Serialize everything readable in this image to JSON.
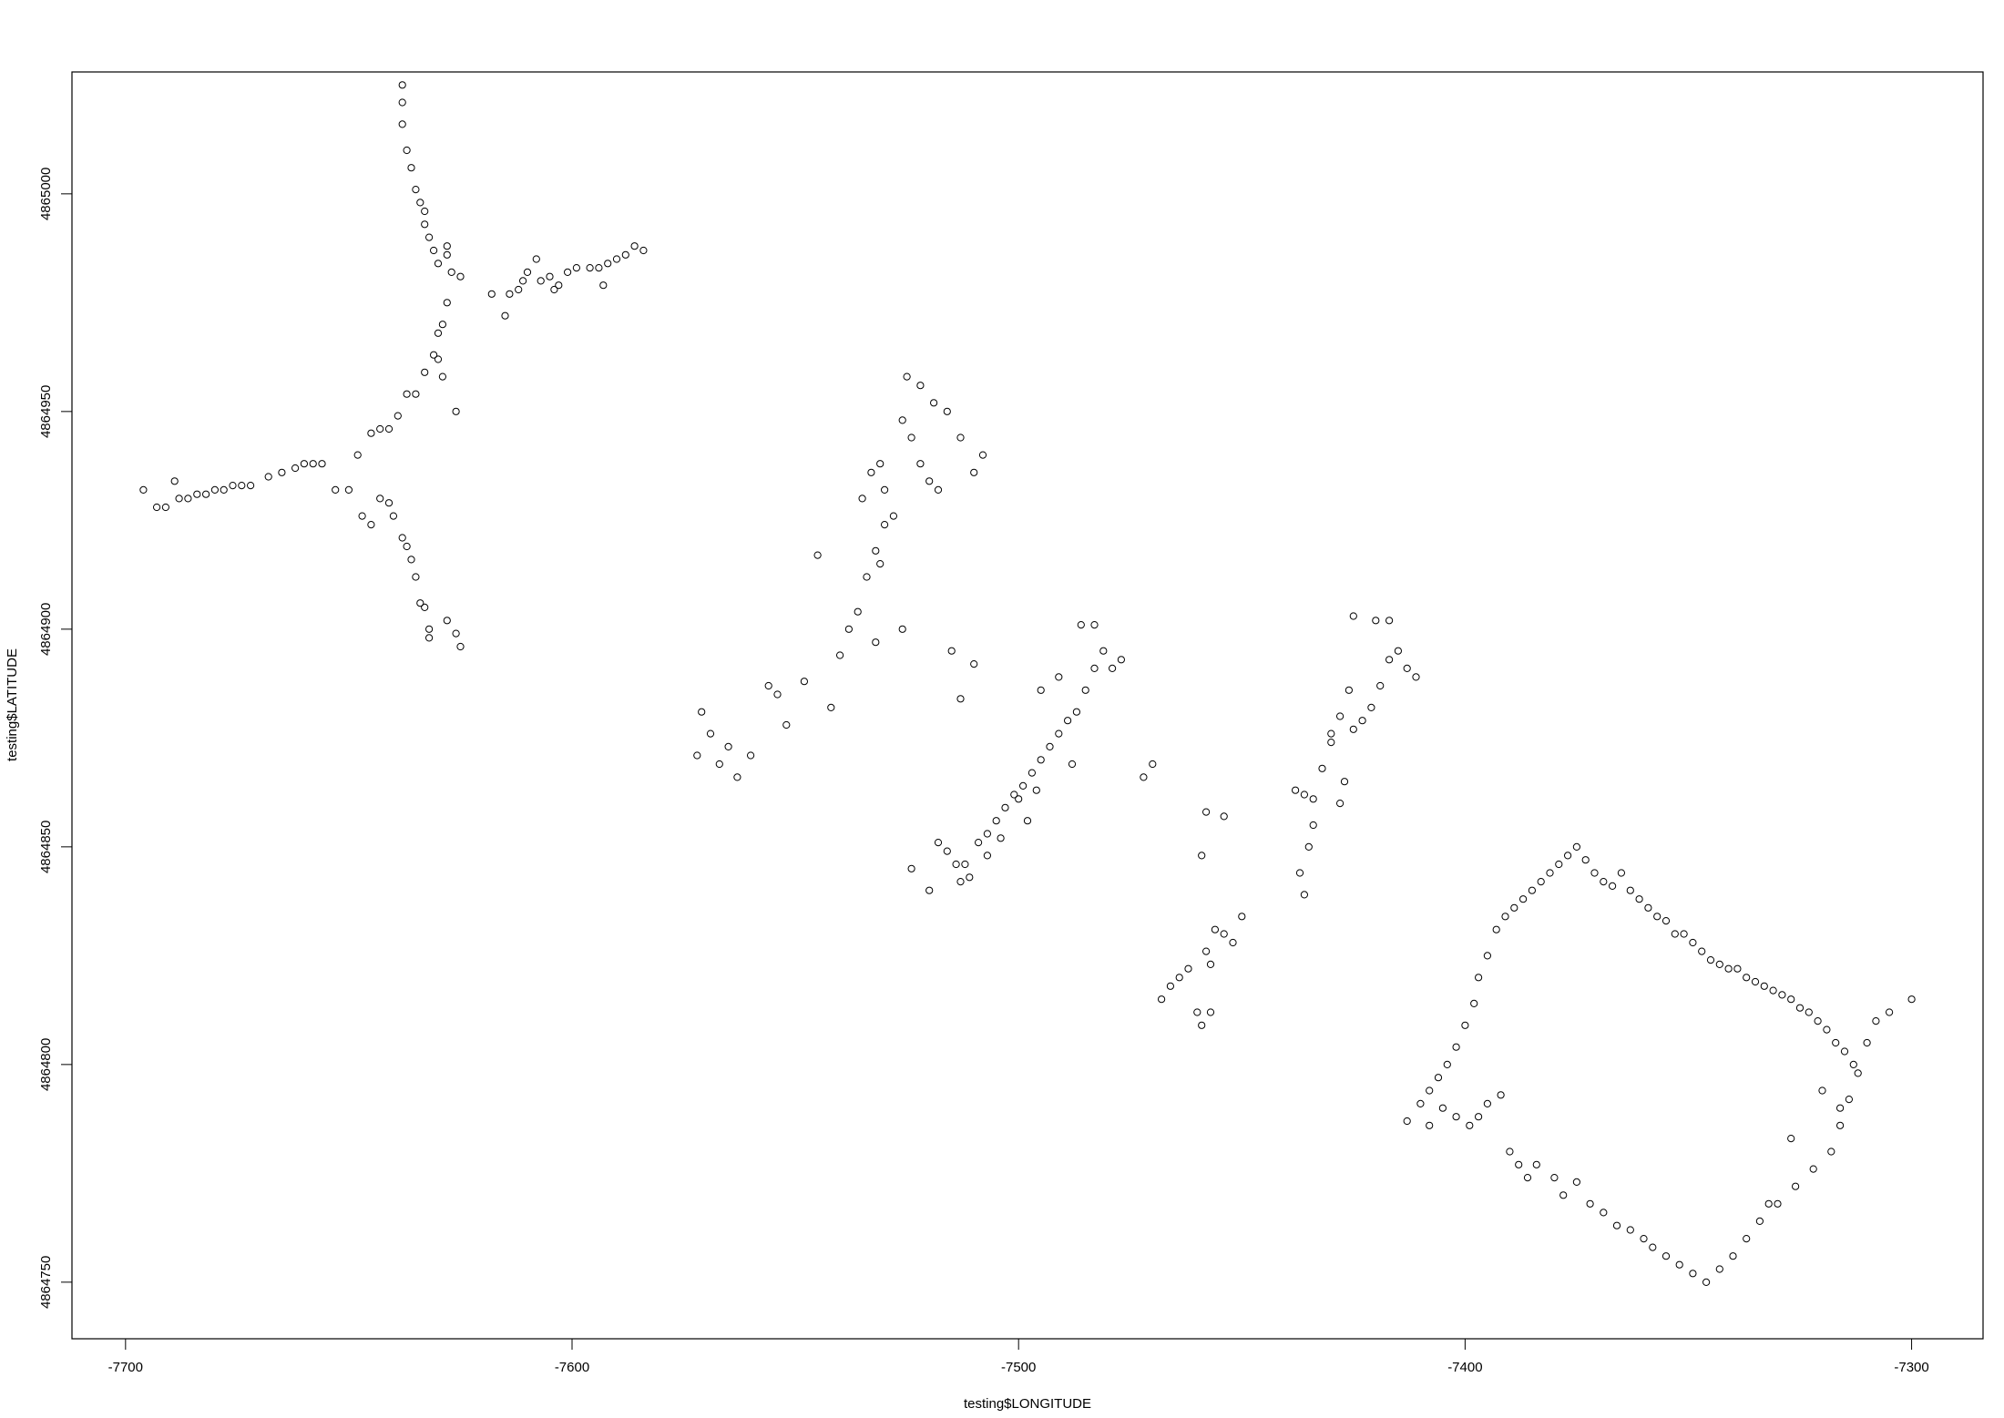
{
  "chart_data": {
    "type": "scatter",
    "title": "",
    "xlabel": "testing$LONGITUDE",
    "ylabel": "testing$LATITUDE",
    "xlim": [
      -7712,
      -7284
    ],
    "ylim": [
      4864737,
      4865028
    ],
    "xticks": [
      -7700,
      -7600,
      -7500,
      -7400,
      -7300
    ],
    "yticks": [
      4864750,
      4864800,
      4864850,
      4864900,
      4864950,
      4865000
    ],
    "grid": false,
    "point_style": "open-circle",
    "points": [
      [
        -7696,
        4864932
      ],
      [
        -7693,
        4864928
      ],
      [
        -7691,
        4864928
      ],
      [
        -7689,
        4864934
      ],
      [
        -7688,
        4864930
      ],
      [
        -7686,
        4864930
      ],
      [
        -7684,
        4864931
      ],
      [
        -7682,
        4864931
      ],
      [
        -7680,
        4864932
      ],
      [
        -7678,
        4864932
      ],
      [
        -7676,
        4864933
      ],
      [
        -7674,
        4864933
      ],
      [
        -7672,
        4864933
      ],
      [
        -7668,
        4864935
      ],
      [
        -7665,
        4864936
      ],
      [
        -7662,
        4864937
      ],
      [
        -7660,
        4864938
      ],
      [
        -7658,
        4864938
      ],
      [
        -7656,
        4864938
      ],
      [
        -7653,
        4864932
      ],
      [
        -7650,
        4864932
      ],
      [
        -7647,
        4864926
      ],
      [
        -7645,
        4864924
      ],
      [
        -7643,
        4864930
      ],
      [
        -7641,
        4864929
      ],
      [
        -7640,
        4864926
      ],
      [
        -7638,
        4864921
      ],
      [
        -7637,
        4864919
      ],
      [
        -7636,
        4864916
      ],
      [
        -7635,
        4864912
      ],
      [
        -7634,
        4864906
      ],
      [
        -7633,
        4864905
      ],
      [
        -7632,
        4864900
      ],
      [
        -7632,
        4864898
      ],
      [
        -7628,
        4864902
      ],
      [
        -7626,
        4864899
      ],
      [
        -7625,
        4864896
      ],
      [
        -7648,
        4864940
      ],
      [
        -7645,
        4864945
      ],
      [
        -7643,
        4864946
      ],
      [
        -7641,
        4864946
      ],
      [
        -7639,
        4864949
      ],
      [
        -7637,
        4864954
      ],
      [
        -7635,
        4864954
      ],
      [
        -7633,
        4864959
      ],
      [
        -7631,
        4864963
      ],
      [
        -7630,
        4864968
      ],
      [
        -7629,
        4864970
      ],
      [
        -7628,
        4864975
      ],
      [
        -7627,
        4864982
      ],
      [
        -7628,
        4864986
      ],
      [
        -7637,
        4865010
      ],
      [
        -7638,
        4865016
      ],
      [
        -7638,
        4865021
      ],
      [
        -7638,
        4865025
      ],
      [
        -7636,
        4865006
      ],
      [
        -7635,
        4865001
      ],
      [
        -7634,
        4864998
      ],
      [
        -7633,
        4864996
      ],
      [
        -7633,
        4864993
      ],
      [
        -7632,
        4864990
      ],
      [
        -7631,
        4864987
      ],
      [
        -7630,
        4864984
      ],
      [
        -7628,
        4864988
      ],
      [
        -7625,
        4864981
      ],
      [
        -7630,
        4864962
      ],
      [
        -7629,
        4864958
      ],
      [
        -7626,
        4864950
      ],
      [
        -7618,
        4864977
      ],
      [
        -7615,
        4864972
      ],
      [
        -7614,
        4864977
      ],
      [
        -7612,
        4864978
      ],
      [
        -7611,
        4864980
      ],
      [
        -7610,
        4864982
      ],
      [
        -7607,
        4864980
      ],
      [
        -7605,
        4864981
      ],
      [
        -7603,
        4864979
      ],
      [
        -7601,
        4864982
      ],
      [
        -7599,
        4864983
      ],
      [
        -7596,
        4864983
      ],
      [
        -7594,
        4864983
      ],
      [
        -7592,
        4864984
      ],
      [
        -7590,
        4864985
      ],
      [
        -7588,
        4864986
      ],
      [
        -7586,
        4864988
      ],
      [
        -7584,
        4864987
      ],
      [
        -7593,
        4864979
      ],
      [
        -7608,
        4864985
      ],
      [
        -7604,
        4864978
      ],
      [
        -7572,
        4864871
      ],
      [
        -7571,
        4864881
      ],
      [
        -7569,
        4864876
      ],
      [
        -7567,
        4864869
      ],
      [
        -7565,
        4864873
      ],
      [
        -7563,
        4864866
      ],
      [
        -7560,
        4864871
      ],
      [
        -7556,
        4864887
      ],
      [
        -7554,
        4864885
      ],
      [
        -7552,
        4864878
      ],
      [
        -7548,
        4864888
      ],
      [
        -7545,
        4864917
      ],
      [
        -7542,
        4864882
      ],
      [
        -7540,
        4864894
      ],
      [
        -7538,
        4864900
      ],
      [
        -7536,
        4864904
      ],
      [
        -7534,
        4864912
      ],
      [
        -7532,
        4864918
      ],
      [
        -7530,
        4864924
      ],
      [
        -7535,
        4864930
      ],
      [
        -7533,
        4864936
      ],
      [
        -7531,
        4864938
      ],
      [
        -7530,
        4864932
      ],
      [
        -7528,
        4864926
      ],
      [
        -7526,
        4864948
      ],
      [
        -7524,
        4864944
      ],
      [
        -7522,
        4864938
      ],
      [
        -7520,
        4864934
      ],
      [
        -7518,
        4864932
      ],
      [
        -7525,
        4864958
      ],
      [
        -7522,
        4864956
      ],
      [
        -7519,
        4864952
      ],
      [
        -7516,
        4864950
      ],
      [
        -7513,
        4864944
      ],
      [
        -7510,
        4864936
      ],
      [
        -7508,
        4864940
      ],
      [
        -7531,
        4864915
      ],
      [
        -7532,
        4864897
      ],
      [
        -7526,
        4864900
      ],
      [
        -7515,
        4864895
      ],
      [
        -7513,
        4864884
      ],
      [
        -7510,
        4864892
      ],
      [
        -7512,
        4864846
      ],
      [
        -7509,
        4864851
      ],
      [
        -7507,
        4864853
      ],
      [
        -7505,
        4864856
      ],
      [
        -7503,
        4864859
      ],
      [
        -7501,
        4864862
      ],
      [
        -7499,
        4864864
      ],
      [
        -7497,
        4864867
      ],
      [
        -7495,
        4864870
      ],
      [
        -7493,
        4864873
      ],
      [
        -7491,
        4864876
      ],
      [
        -7489,
        4864879
      ],
      [
        -7487,
        4864881
      ],
      [
        -7485,
        4864886
      ],
      [
        -7483,
        4864891
      ],
      [
        -7481,
        4864895
      ],
      [
        -7479,
        4864891
      ],
      [
        -7477,
        4864893
      ],
      [
        -7495,
        4864886
      ],
      [
        -7491,
        4864889
      ],
      [
        -7488,
        4864869
      ],
      [
        -7486,
        4864901
      ],
      [
        -7483,
        4864901
      ],
      [
        -7516,
        4864849
      ],
      [
        -7514,
        4864846
      ],
      [
        -7511,
        4864843
      ],
      [
        -7507,
        4864848
      ],
      [
        -7504,
        4864852
      ],
      [
        -7500,
        4864861
      ],
      [
        -7498,
        4864856
      ],
      [
        -7496,
        4864863
      ],
      [
        -7524,
        4864845
      ],
      [
        -7520,
        4864840
      ],
      [
        -7518,
        4864851
      ],
      [
        -7513,
        4864842
      ],
      [
        -7472,
        4864866
      ],
      [
        -7470,
        4864869
      ],
      [
        -7468,
        4864815
      ],
      [
        -7466,
        4864818
      ],
      [
        -7464,
        4864820
      ],
      [
        -7462,
        4864822
      ],
      [
        -7460,
        4864812
      ],
      [
        -7459,
        4864809
      ],
      [
        -7458,
        4864826
      ],
      [
        -7456,
        4864831
      ],
      [
        -7454,
        4864830
      ],
      [
        -7452,
        4864828
      ],
      [
        -7450,
        4864834
      ],
      [
        -7458,
        4864858
      ],
      [
        -7459,
        4864848
      ],
      [
        -7454,
        4864857
      ],
      [
        -7457,
        4864823
      ],
      [
        -7457,
        4864812
      ],
      [
        -7438,
        4864863
      ],
      [
        -7436,
        4864862
      ],
      [
        -7434,
        4864861
      ],
      [
        -7432,
        4864868
      ],
      [
        -7430,
        4864874
      ],
      [
        -7428,
        4864880
      ],
      [
        -7426,
        4864886
      ],
      [
        -7437,
        4864844
      ],
      [
        -7436,
        4864839
      ],
      [
        -7435,
        4864850
      ],
      [
        -7434,
        4864855
      ],
      [
        -7430,
        4864876
      ],
      [
        -7427,
        4864865
      ],
      [
        -7425,
        4864877
      ],
      [
        -7423,
        4864879
      ],
      [
        -7421,
        4864882
      ],
      [
        -7419,
        4864887
      ],
      [
        -7417,
        4864893
      ],
      [
        -7415,
        4864895
      ],
      [
        -7413,
        4864891
      ],
      [
        -7411,
        4864889
      ],
      [
        -7425,
        4864903
      ],
      [
        -7420,
        4864902
      ],
      [
        -7417,
        4864902
      ],
      [
        -7428,
        4864860
      ],
      [
        -7413,
        4864787
      ],
      [
        -7410,
        4864791
      ],
      [
        -7408,
        4864794
      ],
      [
        -7406,
        4864797
      ],
      [
        -7404,
        4864800
      ],
      [
        -7402,
        4864804
      ],
      [
        -7400,
        4864809
      ],
      [
        -7398,
        4864814
      ],
      [
        -7397,
        4864820
      ],
      [
        -7395,
        4864825
      ],
      [
        -7393,
        4864831
      ],
      [
        -7391,
        4864834
      ],
      [
        -7389,
        4864836
      ],
      [
        -7387,
        4864838
      ],
      [
        -7385,
        4864840
      ],
      [
        -7383,
        4864842
      ],
      [
        -7381,
        4864844
      ],
      [
        -7379,
        4864846
      ],
      [
        -7377,
        4864848
      ],
      [
        -7375,
        4864850
      ],
      [
        -7373,
        4864847
      ],
      [
        -7371,
        4864844
      ],
      [
        -7369,
        4864842
      ],
      [
        -7367,
        4864841
      ],
      [
        -7365,
        4864844
      ],
      [
        -7363,
        4864840
      ],
      [
        -7361,
        4864838
      ],
      [
        -7359,
        4864836
      ],
      [
        -7357,
        4864834
      ],
      [
        -7355,
        4864833
      ],
      [
        -7353,
        4864830
      ],
      [
        -7351,
        4864830
      ],
      [
        -7349,
        4864828
      ],
      [
        -7347,
        4864826
      ],
      [
        -7345,
        4864824
      ],
      [
        -7343,
        4864823
      ],
      [
        -7341,
        4864822
      ],
      [
        -7339,
        4864822
      ],
      [
        -7337,
        4864820
      ],
      [
        -7335,
        4864819
      ],
      [
        -7333,
        4864818
      ],
      [
        -7331,
        4864817
      ],
      [
        -7329,
        4864816
      ],
      [
        -7327,
        4864815
      ],
      [
        -7325,
        4864813
      ],
      [
        -7323,
        4864812
      ],
      [
        -7321,
        4864810
      ],
      [
        -7319,
        4864808
      ],
      [
        -7317,
        4864805
      ],
      [
        -7315,
        4864803
      ],
      [
        -7313,
        4864800
      ],
      [
        -7408,
        4864786
      ],
      [
        -7405,
        4864790
      ],
      [
        -7402,
        4864788
      ],
      [
        -7399,
        4864786
      ],
      [
        -7397,
        4864788
      ],
      [
        -7395,
        4864791
      ],
      [
        -7392,
        4864793
      ],
      [
        -7390,
        4864780
      ],
      [
        -7388,
        4864777
      ],
      [
        -7386,
        4864774
      ],
      [
        -7384,
        4864777
      ],
      [
        -7380,
        4864774
      ],
      [
        -7378,
        4864770
      ],
      [
        -7375,
        4864773
      ],
      [
        -7372,
        4864768
      ],
      [
        -7369,
        4864766
      ],
      [
        -7366,
        4864763
      ],
      [
        -7363,
        4864762
      ],
      [
        -7360,
        4864760
      ],
      [
        -7358,
        4864758
      ],
      [
        -7355,
        4864756
      ],
      [
        -7352,
        4864754
      ],
      [
        -7349,
        4864752
      ],
      [
        -7346,
        4864750
      ],
      [
        -7343,
        4864753
      ],
      [
        -7340,
        4864756
      ],
      [
        -7337,
        4864760
      ],
      [
        -7334,
        4864764
      ],
      [
        -7330,
        4864768
      ],
      [
        -7326,
        4864772
      ],
      [
        -7322,
        4864776
      ],
      [
        -7318,
        4864780
      ],
      [
        -7316,
        4864786
      ],
      [
        -7314,
        4864792
      ],
      [
        -7312,
        4864798
      ],
      [
        -7310,
        4864805
      ],
      [
        -7308,
        4864810
      ],
      [
        -7305,
        4864812
      ],
      [
        -7300,
        4864815
      ],
      [
        -7316,
        4864790
      ],
      [
        -7320,
        4864794
      ],
      [
        -7327,
        4864783
      ],
      [
        -7332,
        4864768
      ]
    ]
  }
}
